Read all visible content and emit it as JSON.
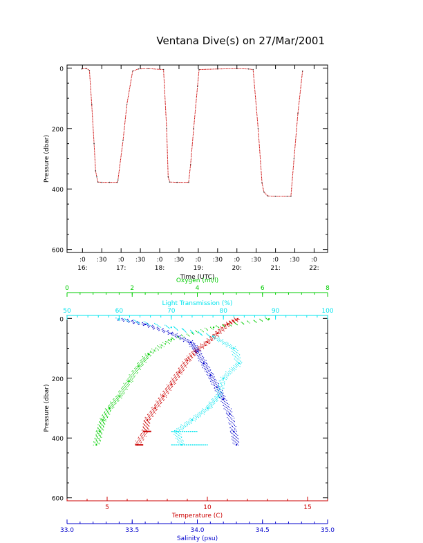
{
  "page": {
    "title": "Ventana Dive(s) on 27/Mar/2001"
  },
  "colors": {
    "axis": "#000000",
    "trace": "#cc0000",
    "temperature": "#cc0000",
    "salinity": "#0000cc",
    "oxygen": "#00cc00",
    "transmission": "#00e5ee"
  },
  "chart_data": [
    {
      "type": "line",
      "ylabel": "Pressure (dbar)",
      "xlabel": "Time (UTC)",
      "ylim": [
        610,
        -10
      ],
      "y_ticks": [
        "0",
        "200",
        "400",
        "600"
      ],
      "x_ticks": [
        {
          "x": 16.0,
          "label": ":0"
        },
        {
          "x": 16.5,
          "label": ":30"
        },
        {
          "x": 17.0,
          "label": ":0"
        },
        {
          "x": 17.5,
          "label": ":30"
        },
        {
          "x": 18.0,
          "label": ":0"
        },
        {
          "x": 18.5,
          "label": ":30"
        },
        {
          "x": 19.0,
          "label": ":0"
        },
        {
          "x": 19.5,
          "label": ":30"
        },
        {
          "x": 20.0,
          "label": ":0"
        },
        {
          "x": 20.5,
          "label": ":30"
        },
        {
          "x": 21.0,
          "label": ":0"
        },
        {
          "x": 21.5,
          "label": ":30"
        },
        {
          "x": 22.0,
          "label": ":0"
        }
      ],
      "hour_labels": [
        {
          "x": 16.0,
          "label": "16:"
        },
        {
          "x": 17.0,
          "label": "17:"
        },
        {
          "x": 18.0,
          "label": "18:"
        },
        {
          "x": 19.0,
          "label": "19:"
        },
        {
          "x": 20.0,
          "label": "20:"
        },
        {
          "x": 21.0,
          "label": "21:"
        },
        {
          "x": 22.0,
          "label": "22:"
        }
      ],
      "xlim": [
        15.6,
        22.35
      ],
      "series": [
        {
          "points": [
            [
              15.98,
              3
            ],
            [
              16.1,
              1
            ],
            [
              16.18,
              8
            ],
            [
              16.24,
              120
            ],
            [
              16.3,
              250
            ],
            [
              16.34,
              340
            ],
            [
              16.37,
              360
            ],
            [
              16.4,
              377
            ],
            [
              16.5,
              378
            ],
            [
              16.7,
              378
            ],
            [
              16.9,
              378
            ],
            [
              16.92,
              370
            ],
            [
              17.05,
              240
            ],
            [
              17.15,
              120
            ],
            [
              17.3,
              10
            ],
            [
              17.45,
              3
            ],
            [
              17.7,
              2
            ],
            [
              18.1,
              5
            ],
            [
              18.18,
              200
            ],
            [
              18.22,
              360
            ],
            [
              18.26,
              377
            ],
            [
              18.45,
              378
            ],
            [
              18.75,
              378
            ],
            [
              18.8,
              320
            ],
            [
              18.88,
              200
            ],
            [
              18.98,
              60
            ],
            [
              19.02,
              5
            ],
            [
              19.5,
              3
            ],
            [
              20.0,
              2
            ],
            [
              20.3,
              3
            ],
            [
              20.42,
              5
            ],
            [
              20.55,
              200
            ],
            [
              20.65,
              380
            ],
            [
              20.7,
              410
            ],
            [
              20.8,
              423
            ],
            [
              21.0,
              424
            ],
            [
              21.3,
              424
            ],
            [
              21.4,
              424
            ],
            [
              21.48,
              300
            ],
            [
              21.58,
              150
            ],
            [
              21.7,
              10
            ]
          ]
        }
      ]
    },
    {
      "type": "scatter",
      "ylabel": "Pressure (dbar)",
      "ylim": [
        610,
        -10
      ],
      "y_ticks": [
        "0",
        "200",
        "400",
        "600"
      ],
      "axes": [
        {
          "label": "Oxygen (ml/l)",
          "min": 0,
          "max": 8,
          "ticks": [
            "0",
            "2",
            "4",
            "6",
            "8"
          ],
          "color_key": "oxygen",
          "position": "top-outer"
        },
        {
          "label": "Light Transmission (%)",
          "min": 50,
          "max": 100,
          "ticks": [
            "50",
            "60",
            "70",
            "80",
            "90",
            "100"
          ],
          "color_key": "transmission",
          "position": "top-inner"
        },
        {
          "label": "Temperature (C)",
          "min": 3.0,
          "max": 16.0,
          "ticks": [
            "5",
            "10",
            "15"
          ],
          "color_key": "temperature",
          "position": "bottom-inner"
        },
        {
          "label": "Salinity (psu)",
          "min": 33.0,
          "max": 35.0,
          "ticks": [
            "33.0",
            "33.5",
            "34.0",
            "34.5",
            "35.0"
          ],
          "color_key": "salinity",
          "position": "bottom-outer"
        }
      ],
      "series": [
        {
          "axis": 2,
          "color_key": "temperature",
          "points": [
            [
              11.5,
              2
            ],
            [
              11.0,
              20
            ],
            [
              10.5,
              50
            ],
            [
              10.0,
              80
            ],
            [
              9.4,
              110
            ],
            [
              9.0,
              140
            ],
            [
              8.6,
              180
            ],
            [
              8.2,
              220
            ],
            [
              7.8,
              260
            ],
            [
              7.4,
              300
            ],
            [
              7.0,
              340
            ],
            [
              6.9,
              378
            ],
            [
              6.5,
              423
            ]
          ]
        },
        {
          "axis": 3,
          "color_key": "salinity",
          "points": [
            [
              33.4,
              2
            ],
            [
              33.6,
              20
            ],
            [
              33.8,
              50
            ],
            [
              33.95,
              80
            ],
            [
              34.0,
              110
            ],
            [
              34.05,
              150
            ],
            [
              34.1,
              190
            ],
            [
              34.15,
              230
            ],
            [
              34.2,
              270
            ],
            [
              34.25,
              320
            ],
            [
              34.28,
              378
            ],
            [
              34.3,
              423
            ]
          ]
        },
        {
          "axis": 0,
          "color_key": "oxygen",
          "points": [
            [
              6.2,
              2
            ],
            [
              4.5,
              30
            ],
            [
              3.2,
              70
            ],
            [
              2.5,
              120
            ],
            [
              2.2,
              160
            ],
            [
              1.9,
              210
            ],
            [
              1.6,
              260
            ],
            [
              1.3,
              300
            ],
            [
              1.1,
              340
            ],
            [
              1.0,
              378
            ],
            [
              0.9,
              423
            ]
          ]
        },
        {
          "axis": 1,
          "color_key": "transmission",
          "points": [
            [
              60,
              2
            ],
            [
              70,
              30
            ],
            [
              78,
              60
            ],
            [
              82,
              100
            ],
            [
              83,
              150
            ],
            [
              80,
              200
            ],
            [
              79,
              260
            ],
            [
              77,
              300
            ],
            [
              74,
              340
            ],
            [
              71,
              378
            ],
            [
              72,
              423
            ]
          ]
        }
      ]
    }
  ]
}
